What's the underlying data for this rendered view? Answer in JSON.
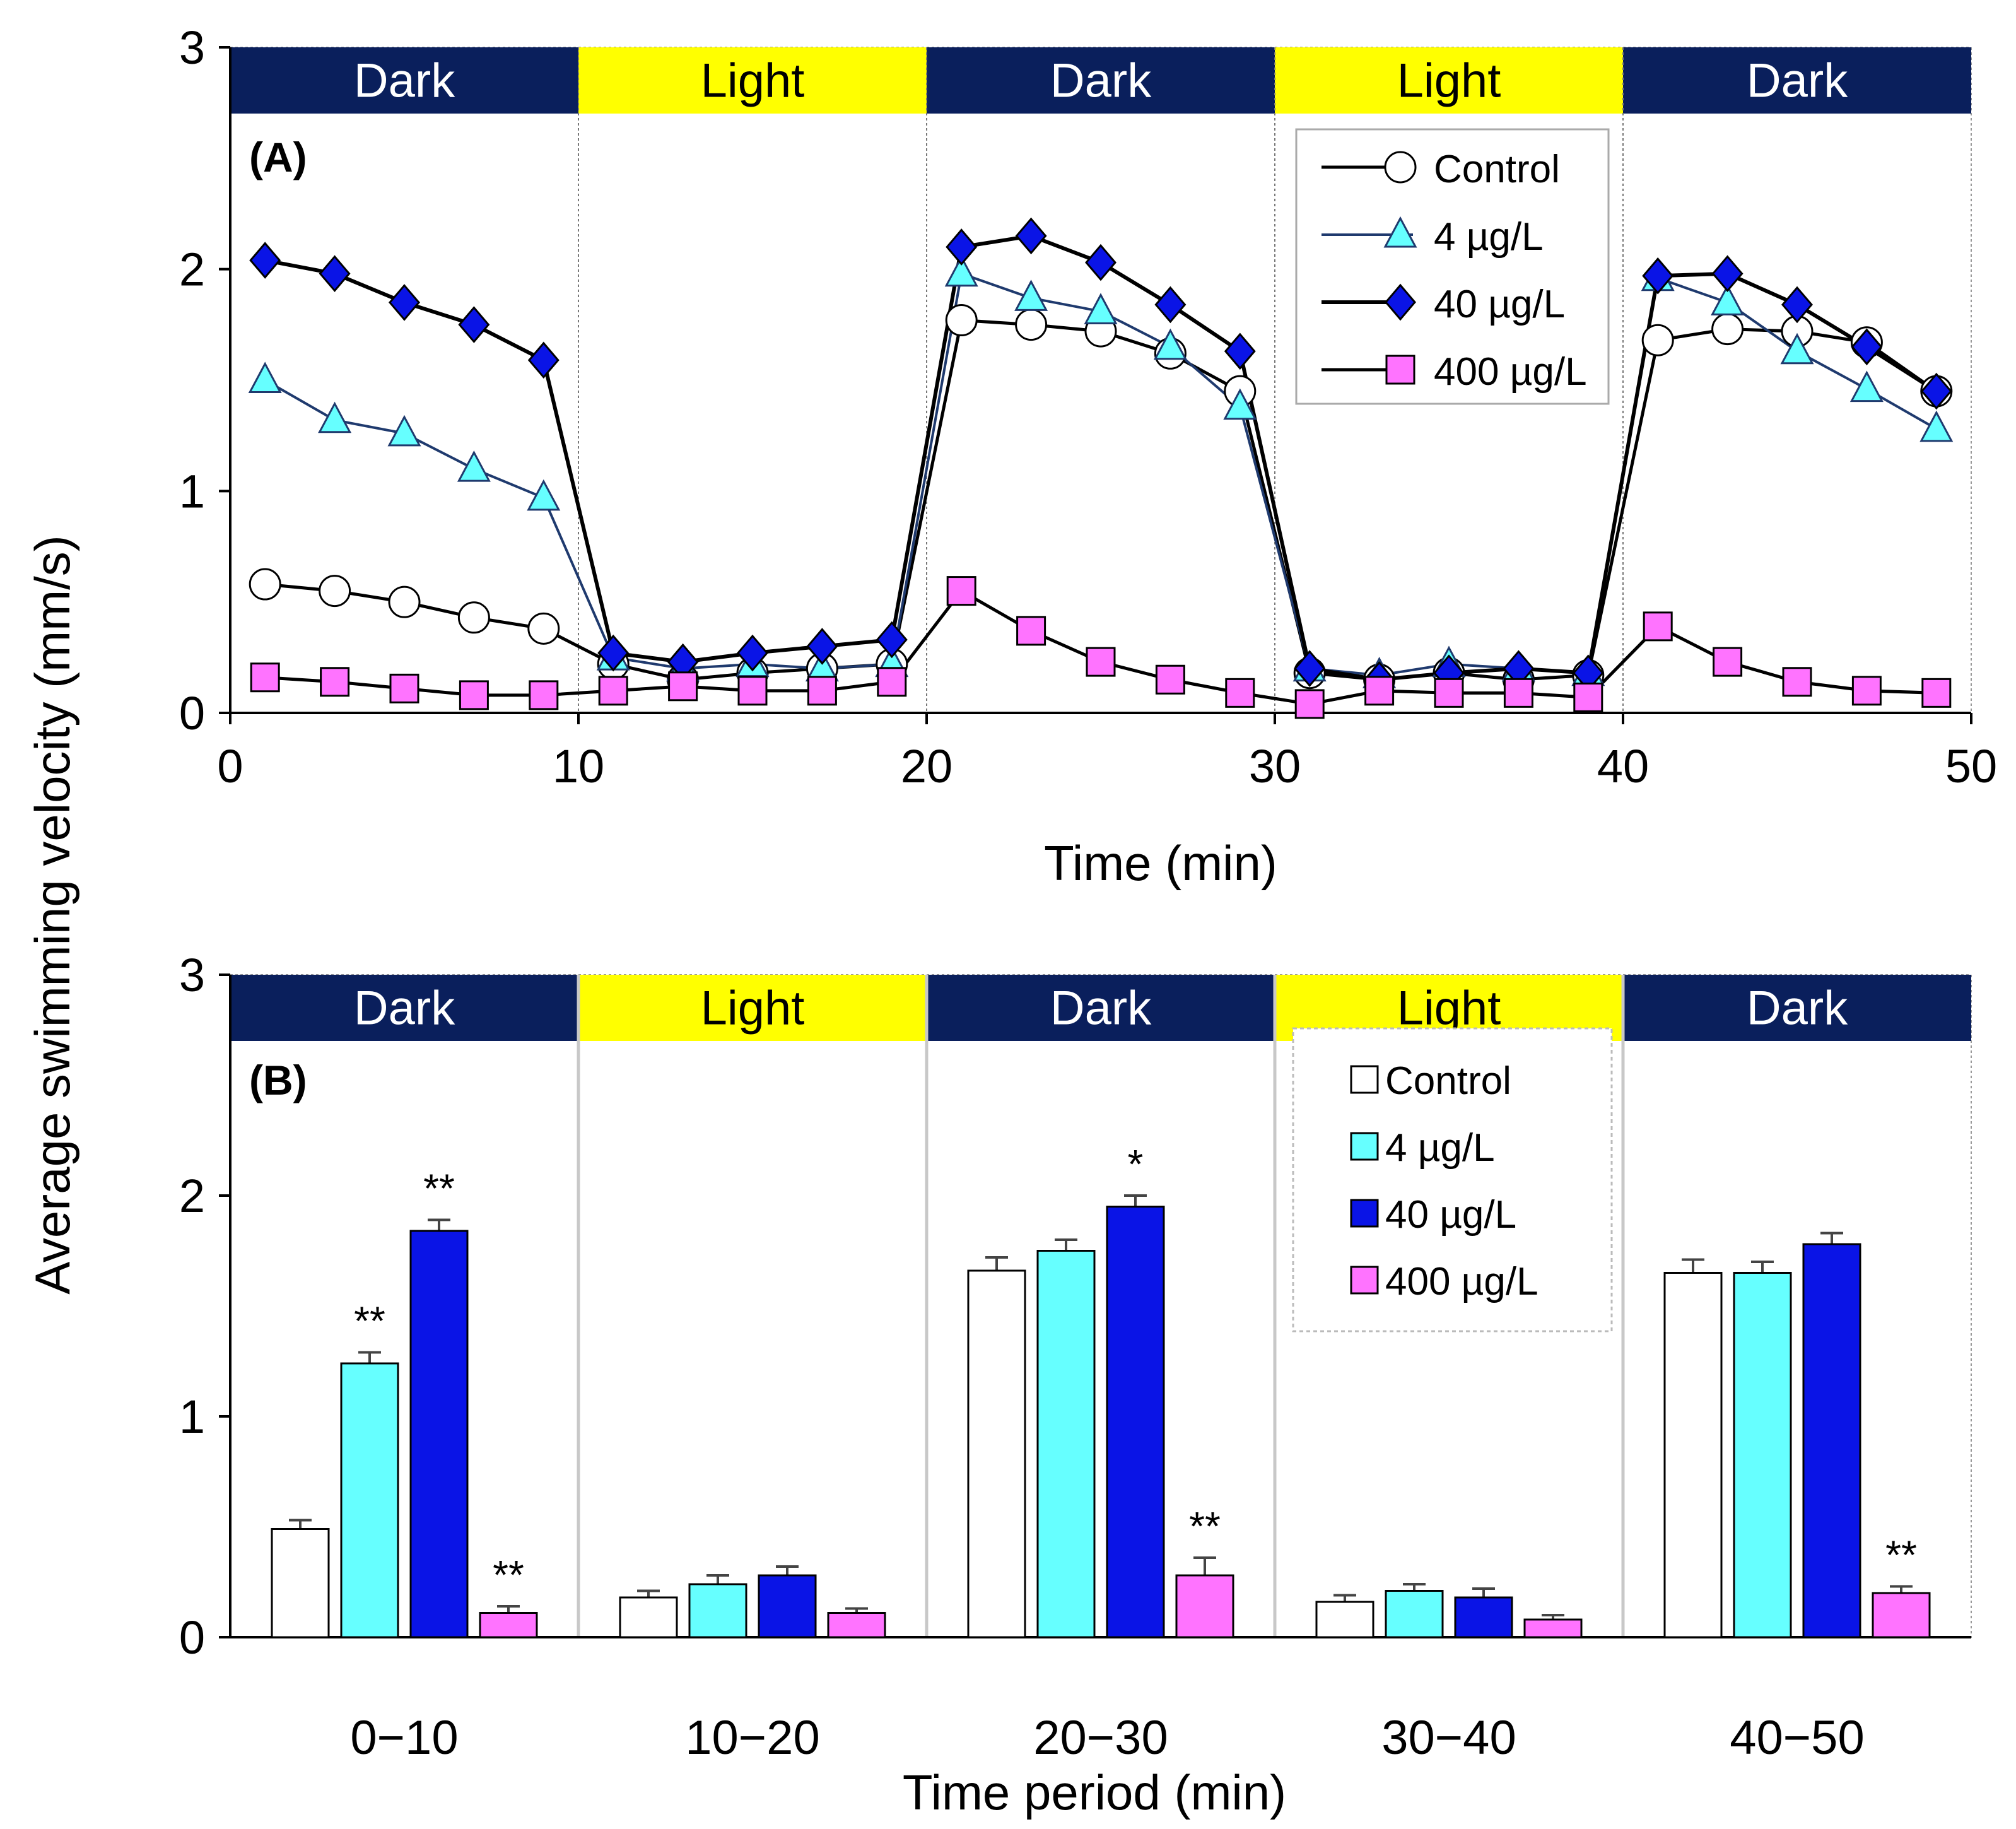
{
  "y_axis_label": "Average  swimming velocity   (mm/s)",
  "colors": {
    "dark_band": "#0a1f5c",
    "light_band": "#ffff00",
    "control_fill": "#ffffff",
    "c4_fill": "#66ffff",
    "c40_fill": "#0a14e6",
    "c400_fill": "#ff73ff",
    "line_dark": "#000000",
    "line_4": "#1f3a6e"
  },
  "chart_data": [
    {
      "type": "line",
      "panel_label": "(A)",
      "title": "",
      "xlabel": "Time (min)",
      "ylabel": "Average  swimming velocity   (mm/s)",
      "xlim": [
        0,
        50
      ],
      "ylim": [
        0,
        3
      ],
      "x_ticks": [
        "0",
        "10",
        "20",
        "30",
        "40",
        "50"
      ],
      "y_ticks": [
        "0",
        "1",
        "2",
        "3"
      ],
      "phases": [
        "Dark",
        "Light",
        "Dark",
        "Light",
        "Dark"
      ],
      "legend": [
        "Control",
        "4 µg/L",
        "40 µg/L",
        "400 µg/L"
      ],
      "x": [
        1,
        3,
        5,
        7,
        9,
        11,
        13,
        15,
        17,
        19,
        21,
        23,
        25,
        27,
        29,
        31,
        33,
        35,
        37,
        39,
        41,
        43,
        45,
        47,
        49
      ],
      "series": [
        {
          "name": "Control",
          "marker": "circle",
          "values": [
            0.58,
            0.55,
            0.5,
            0.43,
            0.38,
            0.22,
            0.15,
            0.18,
            0.2,
            0.22,
            1.77,
            1.75,
            1.72,
            1.62,
            1.45,
            0.18,
            0.15,
            0.18,
            0.15,
            0.17,
            1.68,
            1.73,
            1.72,
            1.67,
            1.45
          ]
        },
        {
          "name": "4 µg/L",
          "marker": "triangle",
          "values": [
            1.5,
            1.32,
            1.26,
            1.1,
            0.97,
            0.25,
            0.2,
            0.22,
            0.2,
            0.22,
            1.98,
            1.87,
            1.81,
            1.65,
            1.38,
            0.2,
            0.17,
            0.22,
            0.2,
            0.18,
            1.96,
            1.85,
            1.63,
            1.46,
            1.28
          ]
        },
        {
          "name": "40 µg/L",
          "marker": "diamond",
          "values": [
            2.04,
            1.98,
            1.85,
            1.75,
            1.59,
            0.27,
            0.23,
            0.27,
            0.3,
            0.33,
            2.1,
            2.15,
            2.03,
            1.84,
            1.63,
            0.2,
            0.15,
            0.18,
            0.2,
            0.18,
            1.97,
            1.98,
            1.84,
            1.65,
            1.45
          ]
        },
        {
          "name": "400 µg/L",
          "marker": "square",
          "values": [
            0.16,
            0.14,
            0.11,
            0.08,
            0.08,
            0.1,
            0.12,
            0.1,
            0.1,
            0.14,
            0.55,
            0.37,
            0.23,
            0.15,
            0.09,
            0.04,
            0.1,
            0.09,
            0.09,
            0.07,
            0.39,
            0.23,
            0.14,
            0.1,
            0.09
          ]
        }
      ]
    },
    {
      "type": "bar",
      "panel_label": "(B)",
      "title": "",
      "xlabel": "Time period (min)",
      "ylabel": "Average  swimming velocity   (mm/s)",
      "ylim": [
        0,
        3
      ],
      "y_ticks": [
        "0",
        "1",
        "2",
        "3"
      ],
      "categories": [
        "0−10",
        "10−20",
        "20−30",
        "30−40",
        "40−50"
      ],
      "phases": [
        "Dark",
        "Light",
        "Dark",
        "Light",
        "Dark"
      ],
      "legend": [
        "Control",
        "4 µg/L",
        "40 µg/L",
        "400 µg/L"
      ],
      "series": [
        {
          "name": "Control",
          "values": [
            0.49,
            0.18,
            1.66,
            0.16,
            1.65
          ],
          "errors": [
            0.04,
            0.03,
            0.06,
            0.03,
            0.06
          ],
          "significance": [
            "",
            "",
            "",
            "",
            ""
          ]
        },
        {
          "name": "4 µg/L",
          "values": [
            1.24,
            0.24,
            1.75,
            0.21,
            1.65
          ],
          "errors": [
            0.05,
            0.04,
            0.05,
            0.03,
            0.05
          ],
          "significance": [
            "**",
            "",
            "",
            "",
            ""
          ]
        },
        {
          "name": "40 µg/L",
          "values": [
            1.84,
            0.28,
            1.95,
            0.18,
            1.78
          ],
          "errors": [
            0.05,
            0.04,
            0.05,
            0.04,
            0.05
          ],
          "significance": [
            "**",
            "",
            "*",
            "",
            ""
          ]
        },
        {
          "name": "400 µg/L",
          "values": [
            0.11,
            0.11,
            0.28,
            0.08,
            0.2
          ],
          "errors": [
            0.03,
            0.02,
            0.08,
            0.02,
            0.03
          ],
          "significance": [
            "**",
            "",
            "**",
            "",
            "**"
          ]
        }
      ]
    }
  ]
}
